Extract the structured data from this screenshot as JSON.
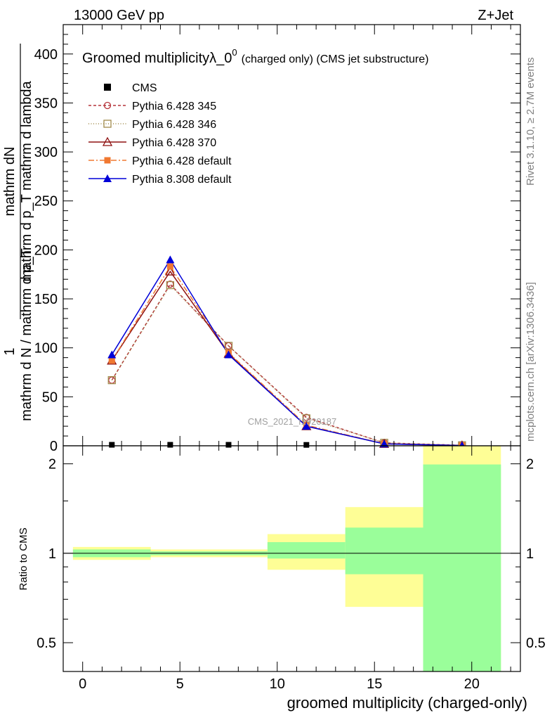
{
  "header": {
    "collision": "13000 GeV pp",
    "process": "Z+Jet"
  },
  "sidebar": {
    "rivet": "Rivet 3.1.10, ≥ 2.7M events",
    "mcplots": "mcplots.cern.ch [arXiv:1306.3436]"
  },
  "chart_data": [
    {
      "type": "line",
      "title_main": "Groomed multiplicityλ_0",
      "title_sup": "0",
      "title_small": "(charged only) (CMS jet substructure)",
      "ylabel_numer": "mathrm dN",
      "ylabel_denom": "mathrm d p_T mathrm d lambda",
      "ylabel_prefix_numer": "1",
      "ylabel_prefix_denom": "mathrm d N / mathrm d p_T",
      "watermark": "CMS_2021_I1920187",
      "xlim": [
        -1,
        22.5
      ],
      "ylim": [
        0,
        430
      ],
      "yticks": [
        0,
        50,
        100,
        150,
        200,
        250,
        300,
        350,
        400
      ],
      "x": [
        1.5,
        4.5,
        7.5,
        11.5,
        15.5,
        19.5
      ],
      "data": {
        "name": "CMS",
        "color": "#000000",
        "values": [
          0.3,
          0.3,
          0.3,
          0.2,
          0,
          0
        ]
      },
      "series": [
        {
          "name": "Pythia 6.428 345",
          "color": "#b5333a",
          "dash": "4,3",
          "marker": "circle-open",
          "values": [
            67,
            165,
            102,
            29,
            3,
            0.5
          ]
        },
        {
          "name": "Pythia 6.428 346",
          "color": "#a08a4a",
          "dash": "1,2.5",
          "marker": "square-open",
          "values": [
            67,
            164,
            102,
            28,
            3,
            0.5
          ]
        },
        {
          "name": "Pythia 6.428 370",
          "color": "#8e1010",
          "dash": "",
          "marker": "triangle-open",
          "values": [
            87,
            178,
            94,
            20,
            2,
            0.3
          ]
        },
        {
          "name": "Pythia 6.428 default",
          "color": "#f07830",
          "dash": "8,3,2,3",
          "marker": "square-filled",
          "values": [
            87,
            183,
            95,
            21,
            2,
            0.3
          ]
        },
        {
          "name": "Pythia 8.308 default",
          "color": "#0000d8",
          "dash": "",
          "marker": "triangle-filled",
          "values": [
            93,
            190,
            93,
            20,
            2,
            0.3
          ]
        }
      ]
    },
    {
      "type": "area",
      "ylabel": "Ratio to CMS",
      "xlabel": "groomed multiplicity (charged-only)",
      "xlim": [
        -1,
        22.5
      ],
      "ylim": [
        0.4,
        2.3
      ],
      "log_y": true,
      "yticks": [
        0.5,
        1,
        2
      ],
      "ytick_labels": [
        "0.5",
        "1",
        "2"
      ],
      "xticks": [
        0,
        5,
        10,
        15,
        20
      ],
      "reference": 1,
      "bins": [
        {
          "x_low": -0.5,
          "x_high": 3.5,
          "stat_low": 0.97,
          "stat_high": 1.03,
          "tot_low": 0.95,
          "tot_high": 1.05
        },
        {
          "x_low": 3.5,
          "x_high": 9.5,
          "stat_low": 0.985,
          "stat_high": 1.015,
          "tot_low": 0.97,
          "tot_high": 1.03
        },
        {
          "x_low": 9.5,
          "x_high": 13.5,
          "stat_low": 0.96,
          "stat_high": 1.09,
          "tot_low": 0.88,
          "tot_high": 1.16
        },
        {
          "x_low": 13.5,
          "x_high": 17.5,
          "stat_low": 0.85,
          "stat_high": 1.22,
          "tot_low": 0.66,
          "tot_high": 1.43
        },
        {
          "x_low": 17.5,
          "x_high": 21.5,
          "stat_low": 0.4,
          "stat_high": 1.99,
          "tot_low": 0.4,
          "tot_high": 2.3
        }
      ],
      "colors": {
        "stat": "#9afe9a",
        "total": "#fefe96"
      }
    }
  ]
}
